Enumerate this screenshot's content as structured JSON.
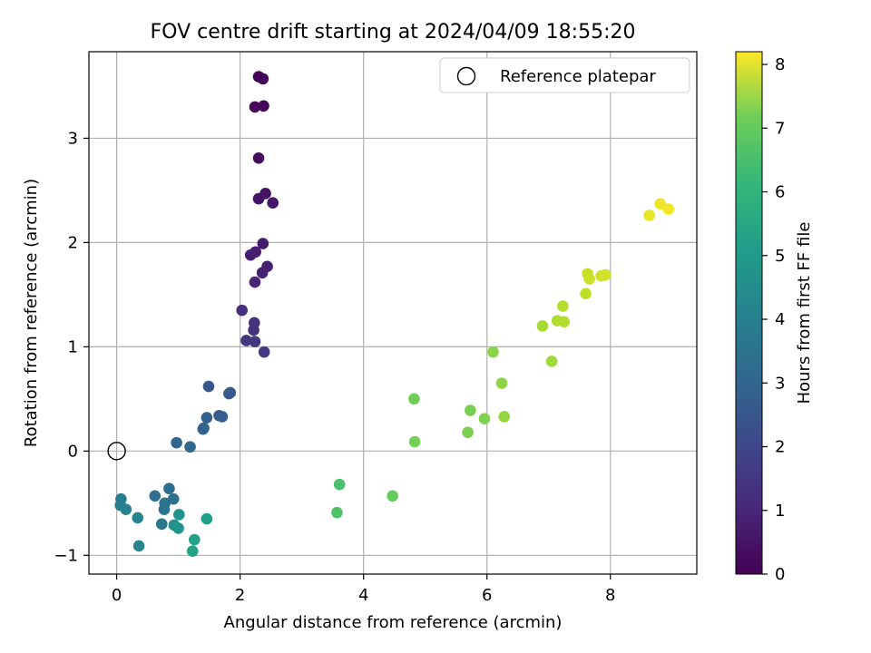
{
  "chart_data": {
    "type": "scatter",
    "title": "FOV centre drift starting at 2024/04/09 18:55:20",
    "xlabel": "Angular distance from reference (arcmin)",
    "ylabel": "Rotation from reference (arcmin)",
    "xlim": [
      -0.45,
      9.4
    ],
    "ylim": [
      -1.18,
      3.83
    ],
    "xticks": [
      0,
      2,
      4,
      6,
      8
    ],
    "yticks": [
      -1,
      0,
      1,
      2,
      3
    ],
    "grid": true,
    "legend": {
      "position": "top-right",
      "entries": [
        "Reference platepar"
      ]
    },
    "reference_point": {
      "x": 0,
      "y": 0
    },
    "colorbar": {
      "label": "Hours from first FF file",
      "range": [
        0,
        8.2
      ],
      "ticks": [
        0,
        1,
        2,
        3,
        4,
        5,
        6,
        7,
        8
      ],
      "colormap": "viridis"
    },
    "points": [
      {
        "x": 2.3,
        "y": 3.59,
        "t": 0.05
      },
      {
        "x": 2.37,
        "y": 3.57,
        "t": 0.08
      },
      {
        "x": 2.24,
        "y": 3.3,
        "t": 0.12
      },
      {
        "x": 2.38,
        "y": 3.31,
        "t": 0.15
      },
      {
        "x": 2.3,
        "y": 2.81,
        "t": 0.25
      },
      {
        "x": 2.41,
        "y": 2.47,
        "t": 0.4
      },
      {
        "x": 2.3,
        "y": 2.42,
        "t": 0.45
      },
      {
        "x": 2.53,
        "y": 2.38,
        "t": 0.5
      },
      {
        "x": 2.37,
        "y": 1.99,
        "t": 0.6
      },
      {
        "x": 2.25,
        "y": 1.91,
        "t": 0.65
      },
      {
        "x": 2.17,
        "y": 1.88,
        "t": 0.7
      },
      {
        "x": 2.44,
        "y": 1.77,
        "t": 0.75
      },
      {
        "x": 2.36,
        "y": 1.71,
        "t": 0.8
      },
      {
        "x": 2.24,
        "y": 1.62,
        "t": 0.85
      },
      {
        "x": 2.03,
        "y": 1.35,
        "t": 1.1
      },
      {
        "x": 2.23,
        "y": 1.23,
        "t": 1.2
      },
      {
        "x": 2.22,
        "y": 1.16,
        "t": 1.25
      },
      {
        "x": 2.1,
        "y": 1.06,
        "t": 1.3
      },
      {
        "x": 2.24,
        "y": 1.05,
        "t": 1.35
      },
      {
        "x": 2.39,
        "y": 0.95,
        "t": 1.4
      },
      {
        "x": 1.49,
        "y": 0.62,
        "t": 2.2
      },
      {
        "x": 1.84,
        "y": 0.56,
        "t": 2.3
      },
      {
        "x": 1.82,
        "y": 0.55,
        "t": 2.3
      },
      {
        "x": 1.66,
        "y": 0.34,
        "t": 2.4
      },
      {
        "x": 1.71,
        "y": 0.33,
        "t": 2.45
      },
      {
        "x": 1.46,
        "y": 0.32,
        "t": 2.5
      },
      {
        "x": 1.41,
        "y": 0.22,
        "t": 2.55
      },
      {
        "x": 1.4,
        "y": 0.21,
        "t": 2.6
      },
      {
        "x": 0.97,
        "y": 0.08,
        "t": 2.7
      },
      {
        "x": 1.19,
        "y": 0.04,
        "t": 2.75
      },
      {
        "x": 0.85,
        "y": -0.36,
        "t": 2.9
      },
      {
        "x": 0.62,
        "y": -0.43,
        "t": 3.0
      },
      {
        "x": 0.92,
        "y": -0.46,
        "t": 3.05
      },
      {
        "x": 0.78,
        "y": -0.5,
        "t": 3.1
      },
      {
        "x": 0.77,
        "y": -0.56,
        "t": 3.15
      },
      {
        "x": 0.73,
        "y": -0.7,
        "t": 3.25
      },
      {
        "x": 0.07,
        "y": -0.46,
        "t": 3.5
      },
      {
        "x": 0.06,
        "y": -0.52,
        "t": 3.55
      },
      {
        "x": 0.15,
        "y": -0.56,
        "t": 3.6
      },
      {
        "x": 0.34,
        "y": -0.64,
        "t": 3.7
      },
      {
        "x": 0.36,
        "y": -0.91,
        "t": 3.8
      },
      {
        "x": 0.93,
        "y": -0.71,
        "t": 4.1
      },
      {
        "x": 1.01,
        "y": -0.61,
        "t": 4.2
      },
      {
        "x": 1.0,
        "y": -0.74,
        "t": 4.25
      },
      {
        "x": 1.46,
        "y": -0.65,
        "t": 4.6
      },
      {
        "x": 1.26,
        "y": -0.85,
        "t": 4.7
      },
      {
        "x": 1.23,
        "y": -0.96,
        "t": 4.75
      },
      {
        "x": 3.61,
        "y": -0.32,
        "t": 5.8
      },
      {
        "x": 3.57,
        "y": -0.59,
        "t": 5.9
      },
      {
        "x": 4.47,
        "y": -0.43,
        "t": 6.2
      },
      {
        "x": 4.82,
        "y": 0.5,
        "t": 6.4
      },
      {
        "x": 4.83,
        "y": 0.09,
        "t": 6.45
      },
      {
        "x": 5.73,
        "y": 0.39,
        "t": 6.5
      },
      {
        "x": 5.69,
        "y": 0.18,
        "t": 6.55
      },
      {
        "x": 5.96,
        "y": 0.31,
        "t": 6.6
      },
      {
        "x": 6.1,
        "y": 0.95,
        "t": 6.7
      },
      {
        "x": 6.24,
        "y": 0.65,
        "t": 6.8
      },
      {
        "x": 6.28,
        "y": 0.33,
        "t": 6.85
      },
      {
        "x": 7.05,
        "y": 0.86,
        "t": 7.0
      },
      {
        "x": 6.9,
        "y": 1.2,
        "t": 7.1
      },
      {
        "x": 7.14,
        "y": 1.25,
        "t": 7.2
      },
      {
        "x": 7.25,
        "y": 1.24,
        "t": 7.25
      },
      {
        "x": 7.23,
        "y": 1.39,
        "t": 7.3
      },
      {
        "x": 7.6,
        "y": 1.51,
        "t": 7.4
      },
      {
        "x": 7.63,
        "y": 1.7,
        "t": 7.5
      },
      {
        "x": 7.66,
        "y": 1.65,
        "t": 7.55
      },
      {
        "x": 7.85,
        "y": 1.68,
        "t": 7.6
      },
      {
        "x": 7.92,
        "y": 1.69,
        "t": 7.65
      },
      {
        "x": 8.63,
        "y": 2.26,
        "t": 7.9
      },
      {
        "x": 8.81,
        "y": 2.37,
        "t": 8.0
      },
      {
        "x": 8.94,
        "y": 2.32,
        "t": 8.1
      }
    ]
  }
}
